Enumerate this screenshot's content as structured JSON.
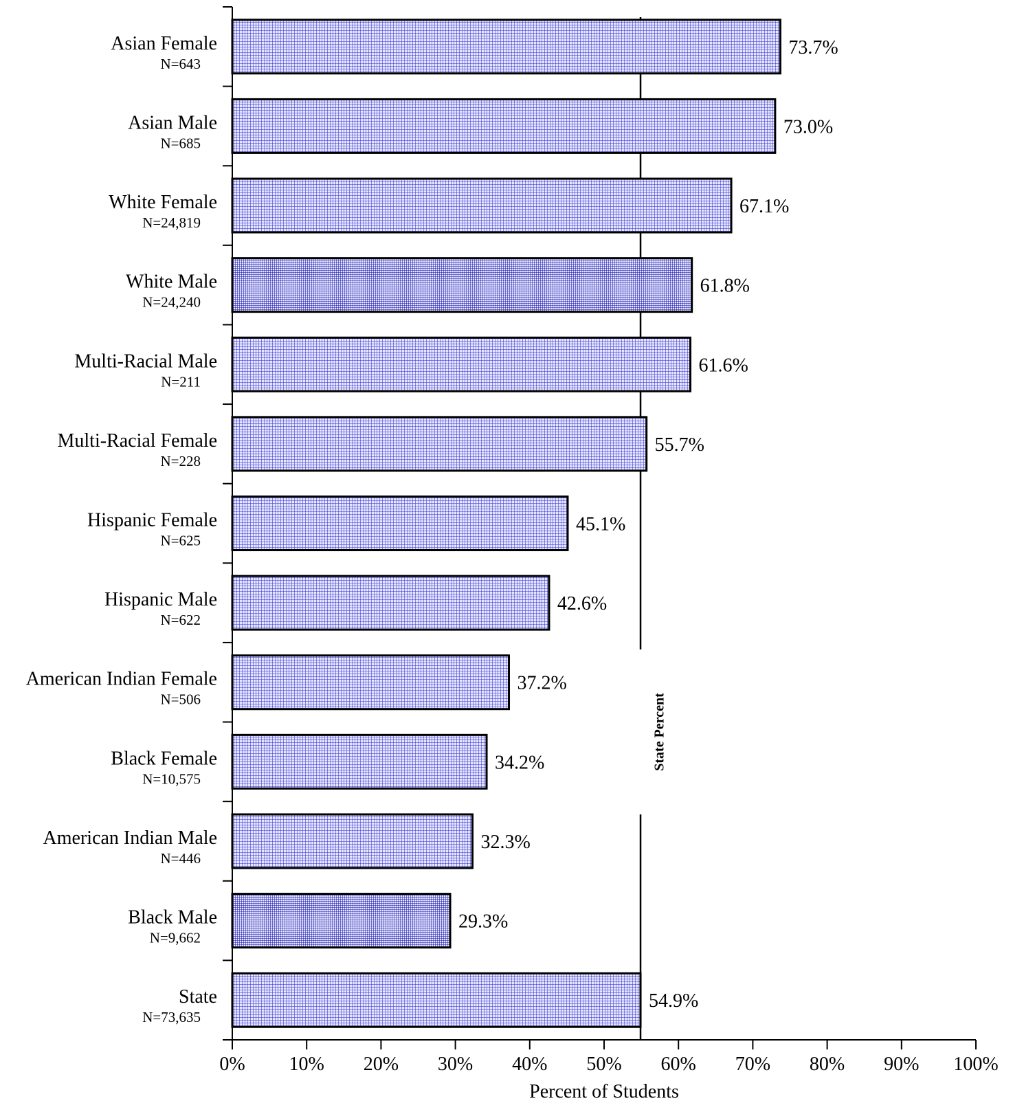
{
  "chart_data": {
    "type": "bar",
    "orientation": "horizontal",
    "categories": [
      "Asian Female",
      "Asian Male",
      "White Female",
      "White Male",
      "Multi-Racial Male",
      "Multi-Racial Female",
      "Hispanic Female",
      "Hispanic Male",
      "American Indian Female",
      "Black Female",
      "American Indian Male",
      "Black Male",
      "State"
    ],
    "counts": [
      "N=643",
      "N=685",
      "N=24,819",
      "N=24,240",
      "N=211",
      "N=228",
      "N=625",
      "N=622",
      "N=506",
      "N=10,575",
      "N=446",
      "N=9,662",
      "N=73,635"
    ],
    "values": [
      73.7,
      73.0,
      67.1,
      61.8,
      61.6,
      55.7,
      45.1,
      42.6,
      37.2,
      34.2,
      32.3,
      29.3,
      54.9
    ],
    "value_labels": [
      "73.7%",
      "73.0%",
      "67.1%",
      "61.8%",
      "61.6%",
      "55.7%",
      "45.1%",
      "42.6%",
      "37.2%",
      "34.2%",
      "32.3%",
      "29.3%",
      "54.9%"
    ],
    "dense_pattern": [
      false,
      false,
      false,
      true,
      false,
      false,
      false,
      false,
      false,
      false,
      false,
      true,
      false
    ],
    "xlabel": "Percent of Students",
    "ylabel": "",
    "xlim": [
      0,
      100
    ],
    "x_ticks": [
      0,
      10,
      20,
      30,
      40,
      50,
      60,
      70,
      80,
      90,
      100
    ],
    "x_tick_labels": [
      "0%",
      "10%",
      "20%",
      "30%",
      "40%",
      "50%",
      "60%",
      "70%",
      "80%",
      "90%",
      "100%"
    ],
    "reference_line": {
      "value": 54.9,
      "label": "State Percent"
    },
    "grid": false,
    "legend": "none",
    "colors": {
      "bar_fill": "#e6e6ff",
      "bar_pattern_dot": "#3333cc",
      "bar_pattern_dense": "#1a1aaa",
      "outline": "#000000"
    }
  }
}
